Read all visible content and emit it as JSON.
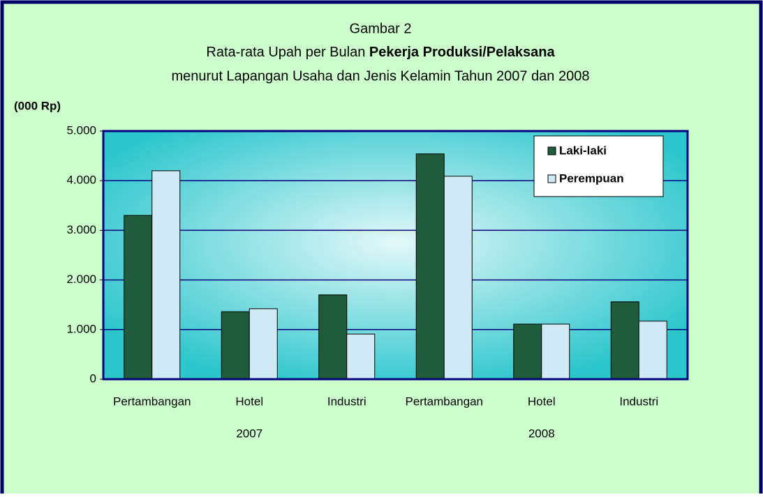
{
  "chart_data": {
    "type": "bar",
    "title": [
      "Gambar 2",
      "Rata-rata Upah per Bulan ",
      "Pekerja Produksi/Pelaksana",
      "menurut Lapangan Usaha dan Jenis Kelamin Tahun 2007 dan 2008"
    ],
    "y_label": "(000 Rp)",
    "categories": [
      "Pertambangan",
      "Hotel",
      "Industri",
      "Pertambangan",
      "Hotel",
      "Industri"
    ],
    "group_labels": [
      "2007",
      "2008"
    ],
    "series": [
      {
        "name": "Laki-laki",
        "color": "#1f5c3c",
        "values": [
          3300,
          1360,
          1700,
          4540,
          1110,
          1560
        ]
      },
      {
        "name": "Perempuan",
        "color": "#cfeaf5",
        "values": [
          4200,
          1420,
          910,
          4090,
          1110,
          1170
        ]
      }
    ],
    "ylim": [
      0,
      5000
    ],
    "yticks": [
      0,
      {
        "value": 1000,
        "label": "1.000"
      },
      {
        "value": 2000,
        "label": "2.000"
      },
      {
        "value": 3000,
        "label": "3.000"
      },
      {
        "value": 4000,
        "label": "4.000"
      },
      {
        "value": 5000,
        "label": "5.000"
      }
    ],
    "grid": true,
    "legend": "top-right"
  }
}
